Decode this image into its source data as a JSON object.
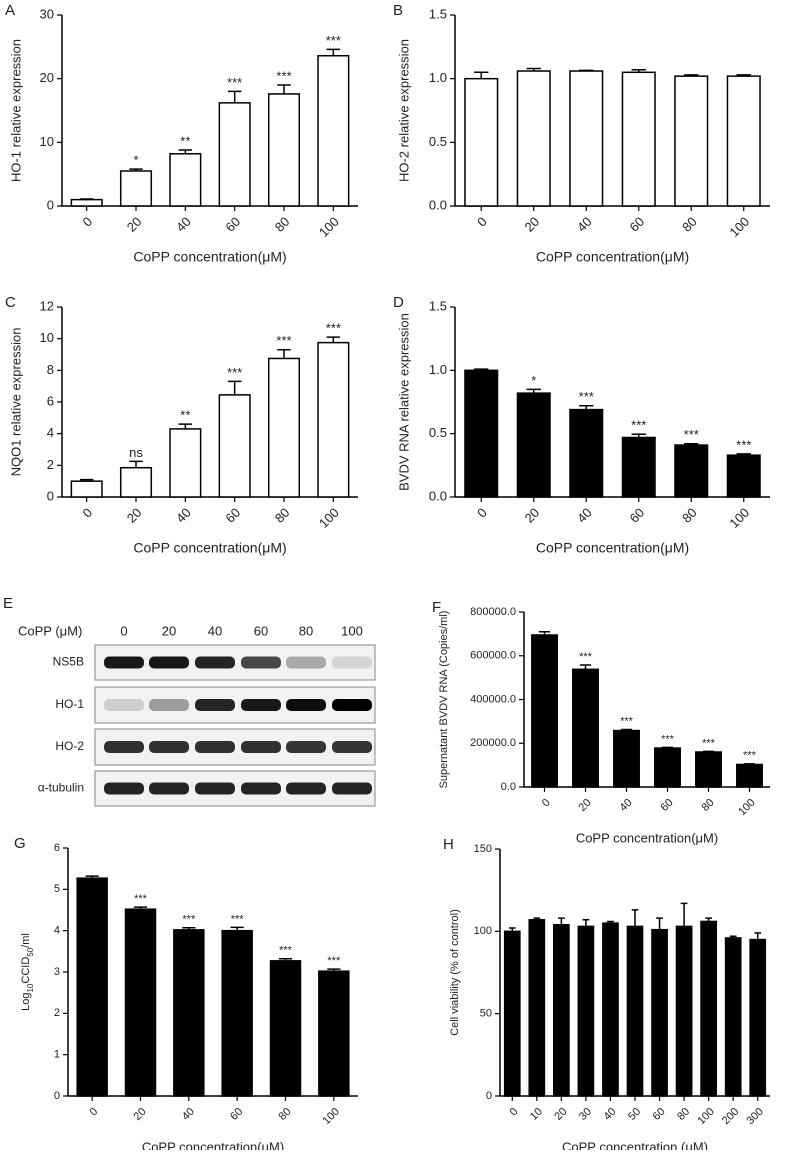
{
  "chart_data": [
    {
      "type": "bar",
      "panel": "A",
      "ylabel": "HO-1 relative expression",
      "xlabel": "CoPP concentration(μM)",
      "categories": [
        "0",
        "20",
        "40",
        "60",
        "80",
        "100"
      ],
      "values": [
        1.0,
        5.5,
        8.2,
        16.2,
        17.6,
        23.6
      ],
      "errors": [
        0.1,
        0.3,
        0.6,
        1.8,
        1.4,
        1.0
      ],
      "annotations": [
        null,
        "*",
        "**",
        "***",
        "***",
        "***"
      ],
      "color": "#ffffff",
      "edgecolor": "#000000",
      "ylim": [
        0,
        30
      ],
      "yticks": [
        0,
        10,
        20,
        30
      ]
    },
    {
      "type": "bar",
      "panel": "B",
      "ylabel": "HO-2 relative expression",
      "xlabel": "CoPP concentration(μM)",
      "categories": [
        "0",
        "20",
        "40",
        "60",
        "80",
        "100"
      ],
      "values": [
        1.0,
        1.06,
        1.06,
        1.05,
        1.02,
        1.02
      ],
      "errors": [
        0.05,
        0.02,
        0.005,
        0.02,
        0.01,
        0.01
      ],
      "color": "#ffffff",
      "edgecolor": "#000000",
      "ylim": [
        0,
        1.5
      ],
      "yticks": [
        {
          "value": 0,
          "label": "0.0"
        },
        {
          "value": 0.5,
          "label": "0.5"
        },
        {
          "value": 1,
          "label": "1.0"
        },
        1.5
      ]
    },
    {
      "type": "bar",
      "panel": "C",
      "ylabel": "NQO1 relative expression",
      "xlabel": "CoPP concentration(μM)",
      "categories": [
        "0",
        "20",
        "40",
        "60",
        "80",
        "100"
      ],
      "values": [
        1.0,
        1.85,
        4.3,
        6.45,
        8.75,
        9.75
      ],
      "errors": [
        0.1,
        0.4,
        0.3,
        0.85,
        0.55,
        0.35
      ],
      "annotations": [
        null,
        "ns",
        "**",
        "***",
        "***",
        "***"
      ],
      "color": "#ffffff",
      "edgecolor": "#000000",
      "ylim": [
        0,
        12
      ],
      "yticks": [
        0,
        2,
        4,
        6,
        8,
        10,
        12
      ]
    },
    {
      "type": "bar",
      "panel": "D",
      "ylabel": "BVDV RNA relative expression",
      "xlabel": "CoPP concentration(μM)",
      "categories": [
        "0",
        "20",
        "40",
        "60",
        "80",
        "100"
      ],
      "values": [
        1.0,
        0.82,
        0.69,
        0.47,
        0.41,
        0.33
      ],
      "errors": [
        0.01,
        0.03,
        0.03,
        0.025,
        0.01,
        0.01
      ],
      "annotations": [
        null,
        "*",
        "***",
        "***",
        "***",
        "***"
      ],
      "color": "#000000",
      "edgecolor": "#000000",
      "ylim": [
        0,
        1.5
      ],
      "yticks": [
        {
          "value": 0,
          "label": "0.0"
        },
        {
          "value": 0.5,
          "label": "0.5"
        },
        {
          "value": 1,
          "label": "1.0"
        },
        1.5
      ]
    },
    {
      "type": "bar",
      "panel": "F",
      "ylabel": "Supernatant BVDV RNA (Copies/ml)",
      "xlabel": "CoPP concentration(μM)",
      "categories": [
        "0",
        "20",
        "40",
        "60",
        "80",
        "100"
      ],
      "values": [
        695000,
        538000,
        258000,
        178000,
        160000,
        103000
      ],
      "errors": [
        15000,
        20000,
        5000,
        3000,
        3000,
        3000
      ],
      "annotations": [
        null,
        "***",
        "***",
        "***",
        "***",
        "***"
      ],
      "color": "#000000",
      "edgecolor": "#000000",
      "ylim": [
        0,
        800000
      ],
      "yticks": [
        {
          "value": 0,
          "label": "0.0"
        },
        {
          "value": 200000,
          "label": "200000.0"
        },
        {
          "value": 400000,
          "label": "400000.0"
        },
        {
          "value": 600000,
          "label": "600000.0"
        },
        {
          "value": 800000,
          "label": "800000.0"
        }
      ]
    },
    {
      "type": "bar",
      "panel": "G",
      "ylabel": [
        "Log",
        "10",
        "CCID",
        "50",
        "/ml"
      ],
      "xlabel": "CoPP concentration(μM)",
      "categories": [
        "0",
        "20",
        "40",
        "60",
        "80",
        "100"
      ],
      "values": [
        5.27,
        4.52,
        4.02,
        4.0,
        3.27,
        3.02
      ],
      "errors": [
        0.05,
        0.05,
        0.05,
        0.08,
        0.05,
        0.05
      ],
      "annotations": [
        null,
        "***",
        "***",
        "***",
        "***",
        "***"
      ],
      "color": "#000000",
      "edgecolor": "#000000",
      "ylim": [
        0,
        6
      ],
      "yticks": [
        0,
        1,
        2,
        3,
        4,
        5,
        6
      ]
    },
    {
      "type": "bar",
      "panel": "H",
      "ylabel": "Cell viability (% of control)",
      "xlabel": "CoPP concentration (μM)",
      "categories": [
        "0",
        "10",
        "20",
        "30",
        "40",
        "50",
        "60",
        "80",
        "100",
        "200",
        "300"
      ],
      "values": [
        100,
        107,
        104,
        103,
        105,
        103,
        101,
        103,
        106,
        96,
        95
      ],
      "errors": [
        2,
        1,
        4,
        4,
        1,
        10,
        7,
        14,
        2,
        1,
        4
      ],
      "color": "#000000",
      "edgecolor": "#000000",
      "ylim": [
        0,
        150
      ],
      "yticks": [
        0,
        50,
        100,
        150
      ]
    }
  ],
  "blot": {
    "panel": "E",
    "treatment_label": "CoPP (μM)",
    "lanes": [
      "0",
      "20",
      "40",
      "60",
      "80",
      "100"
    ],
    "rows": [
      "NS5B",
      "HO-1",
      "HO-2",
      "α-tubulin"
    ]
  }
}
